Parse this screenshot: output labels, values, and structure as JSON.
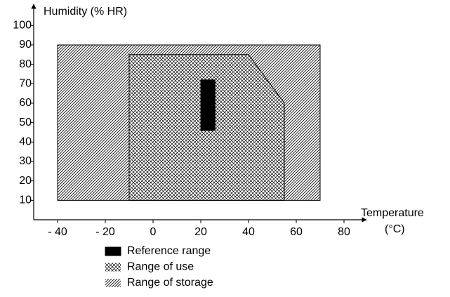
{
  "chart_data": {
    "type": "region",
    "ylabel": "Humidity (% HR)",
    "xlabel": [
      "Temperature",
      "(°C)"
    ],
    "xlim": [
      -50,
      88
    ],
    "ylim": [
      0,
      110
    ],
    "xticks": [
      {
        "value": -40,
        "label": "- 40"
      },
      {
        "value": -20,
        "label": "- 20"
      },
      0,
      20,
      40,
      60,
      80
    ],
    "yticks": [
      10,
      20,
      30,
      40,
      50,
      60,
      70,
      80,
      90,
      100
    ],
    "color": "#000000",
    "series": [
      {
        "name": "Reference range",
        "pattern": "solid",
        "x": [
          20,
          26,
          26,
          20
        ],
        "y": [
          46,
          46,
          72,
          72
        ]
      },
      {
        "name": "Range of use",
        "pattern": "crosshatch",
        "x": [
          -10,
          40,
          55,
          55,
          -10
        ],
        "y": [
          85,
          85,
          60,
          10,
          10
        ]
      },
      {
        "name": "Range of storage",
        "pattern": "hatch",
        "x": [
          -40,
          70,
          70,
          -40
        ],
        "y": [
          10,
          10,
          90,
          90
        ]
      }
    ]
  }
}
